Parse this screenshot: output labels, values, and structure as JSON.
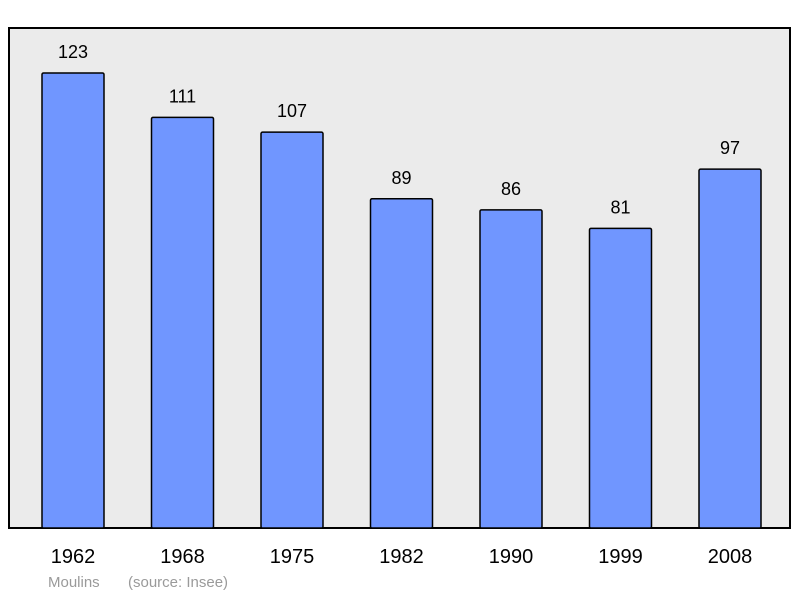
{
  "chart_data": {
    "type": "bar",
    "categories": [
      "1962",
      "1968",
      "1975",
      "1982",
      "1990",
      "1999",
      "2008"
    ],
    "values": [
      123,
      111,
      107,
      89,
      86,
      81,
      97
    ],
    "title": "",
    "xlabel": "",
    "ylabel": "",
    "ylim": [
      0,
      123
    ],
    "grid": false,
    "legend": "none"
  },
  "footer": {
    "place": "Moulins",
    "source": "(source: Insee)"
  },
  "colors": {
    "bar": "#7096ff",
    "plot_background": "#ebebeb",
    "caption": "#9a9a9a"
  }
}
